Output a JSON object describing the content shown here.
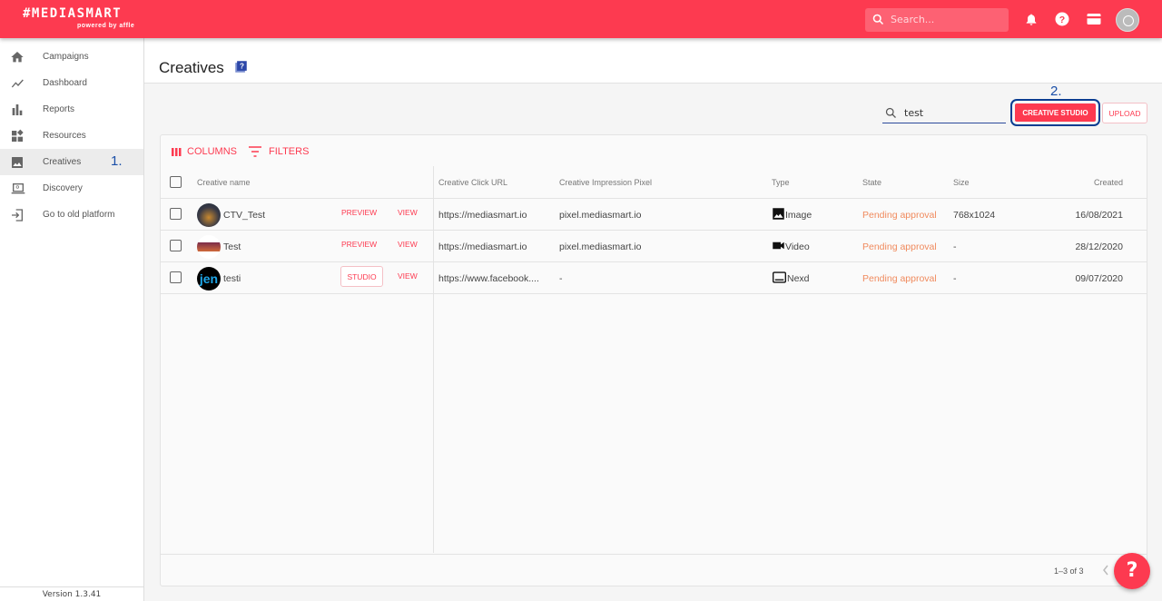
{
  "header": {
    "logo": "#MEDIASMART",
    "logo_sub": "powered by affle",
    "search_placeholder": "Search...",
    "colors": {
      "brand": "#fd3a50"
    }
  },
  "sidebar": {
    "items": [
      {
        "label": "Campaigns",
        "icon": "home-icon"
      },
      {
        "label": "Dashboard",
        "icon": "trend-icon"
      },
      {
        "label": "Reports",
        "icon": "bar-chart-icon"
      },
      {
        "label": "Resources",
        "icon": "widgets-icon"
      },
      {
        "label": "Creatives",
        "icon": "image-icon",
        "active": true
      },
      {
        "label": "Discovery",
        "icon": "laptop-search-icon"
      },
      {
        "label": "Go to old platform",
        "icon": "login-icon"
      }
    ],
    "version": "Version 1.3.41",
    "step_marker": "1."
  },
  "page": {
    "title": "Creatives",
    "search_value": "test",
    "creative_studio_label": "CREATIVE STUDIO",
    "upload_label": "UPLOAD",
    "step_marker": "2."
  },
  "table": {
    "columns_label": "COLUMNS",
    "filters_label": "FILTERS",
    "headers": {
      "name": "Creative name",
      "click_url": "Creative Click URL",
      "pixel": "Creative Impression Pixel",
      "type": "Type",
      "state": "State",
      "size": "Size",
      "created": "Created"
    },
    "rows": [
      {
        "name": "CTV_Test",
        "action1": "PREVIEW",
        "action2": "VIEW",
        "click_url": "https://mediasmart.io",
        "pixel": "pixel.mediasmart.io",
        "type": "Image",
        "state": "Pending approval",
        "size": "768x1024",
        "created": "16/08/2021"
      },
      {
        "name": "Test",
        "action1": "PREVIEW",
        "action2": "VIEW",
        "click_url": "https://mediasmart.io",
        "pixel": "pixel.mediasmart.io",
        "type": "Video",
        "state": "Pending approval",
        "size": "-",
        "created": "28/12/2020"
      },
      {
        "name": "testi",
        "action1": "STUDIO",
        "action2": "VIEW",
        "click_url": "https://www.facebook....",
        "pixel": "-",
        "type": "Nexd",
        "state": "Pending approval",
        "size": "-",
        "created": "09/07/2020"
      }
    ],
    "pagination": "1–3 of 3"
  },
  "help_fab": "?"
}
